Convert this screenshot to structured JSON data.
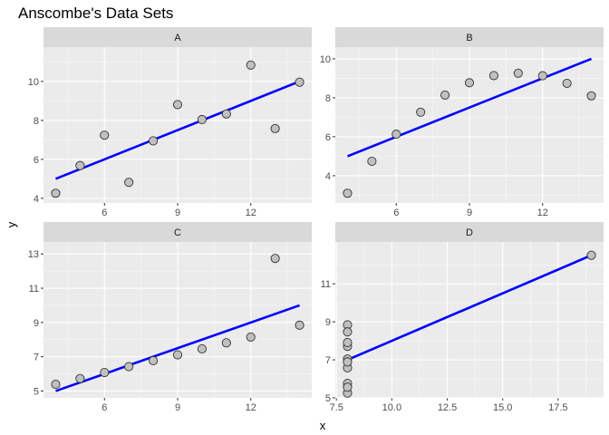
{
  "chart_data": {
    "type": "scatter",
    "title": "Anscombe's Data Sets",
    "xlabel": "x",
    "ylabel": "y",
    "panel_bg": "#ebebeb",
    "strip_bg": "#d9d9d9",
    "grid_major": "#ffffff",
    "point_fill": "#c0c0c0",
    "point_stroke": "#333333",
    "line_color": "#0000ff",
    "panels": [
      {
        "label": "A",
        "xlim": [
          3.5,
          14.5
        ],
        "ylim": [
          3.76,
          11.76
        ],
        "xticks": [
          6,
          9,
          12
        ],
        "yticks": [
          4,
          6,
          8,
          10
        ],
        "xtick_labels": [
          "6",
          "9",
          "12"
        ],
        "x": [
          10,
          8,
          13,
          9,
          11,
          14,
          6,
          4,
          12,
          7,
          5
        ],
        "y": [
          8.04,
          6.95,
          7.58,
          8.81,
          8.33,
          9.96,
          7.24,
          4.26,
          10.84,
          4.82,
          5.68
        ],
        "fit": {
          "x": [
            4,
            14
          ],
          "y": [
            5.0,
            10.0
          ]
        }
      },
      {
        "label": "B",
        "xlim": [
          3.5,
          14.5
        ],
        "ylim": [
          2.6,
          10.6
        ],
        "xticks": [
          6,
          9,
          12
        ],
        "yticks": [
          4,
          6,
          8,
          10
        ],
        "xtick_labels": [
          "6",
          "9",
          "12"
        ],
        "x": [
          10,
          8,
          13,
          9,
          11,
          14,
          6,
          4,
          12,
          7,
          5
        ],
        "y": [
          9.14,
          8.14,
          8.74,
          8.77,
          9.26,
          8.1,
          6.13,
          3.1,
          9.13,
          7.26,
          4.74
        ],
        "fit": {
          "x": [
            4,
            14
          ],
          "y": [
            5.0,
            10.0
          ]
        }
      },
      {
        "label": "C",
        "xlim": [
          3.5,
          14.5
        ],
        "ylim": [
          4.6,
          13.7
        ],
        "xticks": [
          6,
          9,
          12
        ],
        "yticks": [
          5,
          7,
          9,
          11,
          13
        ],
        "xtick_labels": [
          "6",
          "9",
          "12"
        ],
        "x": [
          10,
          8,
          13,
          9,
          11,
          14,
          6,
          4,
          12,
          7,
          5
        ],
        "y": [
          7.46,
          6.77,
          12.74,
          7.11,
          7.81,
          8.84,
          6.08,
          5.39,
          8.15,
          6.42,
          5.73
        ],
        "fit": {
          "x": [
            4,
            14
          ],
          "y": [
            5.0,
            10.0
          ]
        }
      },
      {
        "label": "D",
        "xlim": [
          7.45,
          19.55
        ],
        "ylim": [
          5.0,
          13.2
        ],
        "xticks": [
          7.5,
          10,
          12.5,
          15,
          17.5
        ],
        "yticks": [
          5,
          7,
          9,
          11
        ],
        "xtick_labels": [
          "7.5",
          "10.0",
          "12.5",
          "15.0",
          "17.5"
        ],
        "x": [
          8,
          8,
          8,
          8,
          8,
          8,
          8,
          19,
          8,
          8,
          8
        ],
        "y": [
          6.58,
          5.76,
          7.71,
          8.84,
          8.47,
          7.04,
          5.25,
          12.5,
          5.56,
          7.91,
          6.89
        ],
        "fit": {
          "x": [
            8,
            19
          ],
          "y": [
            7.0,
            12.5
          ]
        }
      }
    ]
  }
}
